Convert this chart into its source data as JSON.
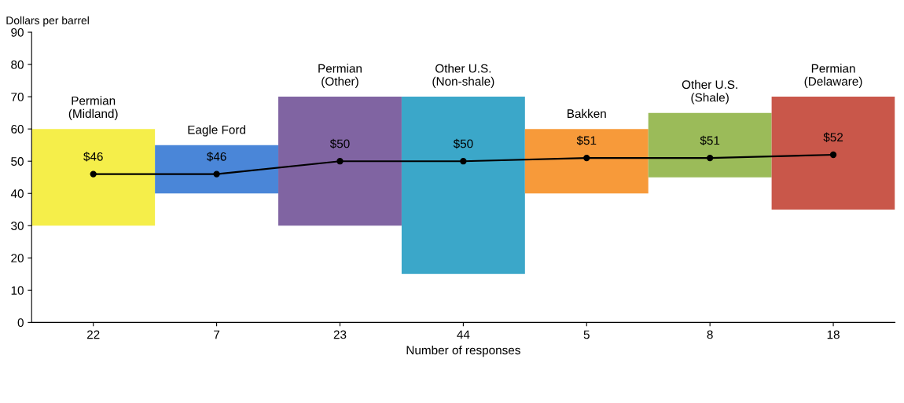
{
  "chart_data": {
    "type": "bar",
    "xlabel": "Number of responses",
    "ylabel": "Dollars per barrel",
    "categories": [
      "22",
      "7",
      "23",
      "44",
      "5",
      "8",
      "18"
    ],
    "series": [
      {
        "values": [
          30,
          15,
          40,
          55,
          20,
          20,
          35
        ],
        "base": [
          30,
          40,
          30,
          15,
          40,
          45,
          35
        ],
        "colors": [
          "#f5ee4a",
          "#4a86d8",
          "#8064a2",
          "#3ba7c9",
          "#f79a3a",
          "#9bbb59",
          "#c9574a"
        ]
      },
      {
        "type": "line",
        "color": "#000000",
        "marker": "circle",
        "values": [
          46,
          46,
          50,
          50,
          51,
          51,
          52
        ],
        "value_labels": [
          "$46",
          "$46",
          "$50",
          "$50",
          "$51",
          "$51",
          "$52"
        ]
      }
    ],
    "ylim": [
      0,
      90
    ],
    "yticks": [
      0,
      10,
      20,
      30,
      40,
      50,
      60,
      70,
      80,
      90
    ],
    "grid": false,
    "legend": false,
    "annotations": [
      "Permian\n(Midland)",
      "Eagle Ford",
      "Permian\n(Other)",
      "Other U.S.\n(Non-shale)",
      "Bakken",
      "Other U.S.\n(Shale)",
      "Permian\n(Delaware)"
    ]
  }
}
